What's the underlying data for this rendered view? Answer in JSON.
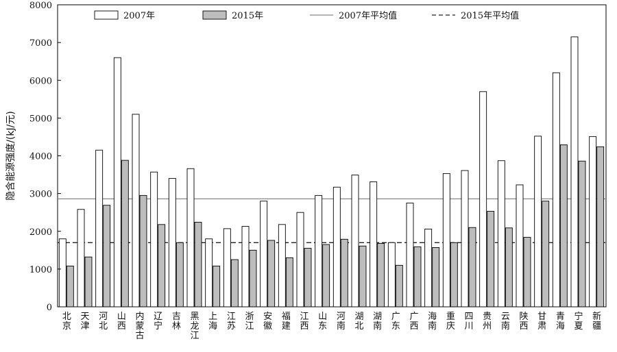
{
  "chart_data": {
    "type": "bar",
    "title": "",
    "xlabel": "",
    "ylabel": "隐含能源强度/(kJ/元)",
    "ylim": [
      0,
      8000
    ],
    "yticks": [
      0,
      1000,
      2000,
      3000,
      4000,
      5000,
      6000,
      7000,
      8000
    ],
    "grid": false,
    "legend_position": "top",
    "categories": [
      "北京",
      "天津",
      "河北",
      "山西",
      "内蒙古",
      "辽宁",
      "吉林",
      "黑龙江",
      "上海",
      "江苏",
      "浙江",
      "安徽",
      "福建",
      "江西",
      "山东",
      "河南",
      "湖北",
      "湖南",
      "广东",
      "广西",
      "海南",
      "重庆",
      "四川",
      "贵州",
      "云南",
      "陕西",
      "甘肃",
      "青海",
      "宁夏",
      "新疆"
    ],
    "series": [
      {
        "name": "2007年",
        "color": "#ffffff",
        "values": [
          1800,
          2580,
          4150,
          6600,
          5100,
          3570,
          3400,
          3660,
          1800,
          2070,
          2130,
          2800,
          2180,
          2500,
          2950,
          3170,
          3490,
          3310,
          1700,
          2750,
          2060,
          3530,
          3610,
          5700,
          3870,
          3230,
          4520,
          6200,
          7150,
          4510
        ]
      },
      {
        "name": "2015年",
        "color": "#bdbdbd",
        "values": [
          1080,
          1320,
          2690,
          3880,
          2950,
          2180,
          1700,
          2240,
          1080,
          1250,
          1500,
          1760,
          1300,
          1550,
          1650,
          1790,
          1610,
          1680,
          1100,
          1590,
          1570,
          1700,
          2100,
          2530,
          2090,
          1840,
          2800,
          4290,
          3860,
          4240
        ]
      }
    ],
    "reference_lines": [
      {
        "name": "2007年平均值",
        "value": 2860,
        "style": "solid",
        "color": "#888888"
      },
      {
        "name": "2015年平均值",
        "value": 1700,
        "style": "dashed",
        "color": "#222222"
      }
    ]
  }
}
